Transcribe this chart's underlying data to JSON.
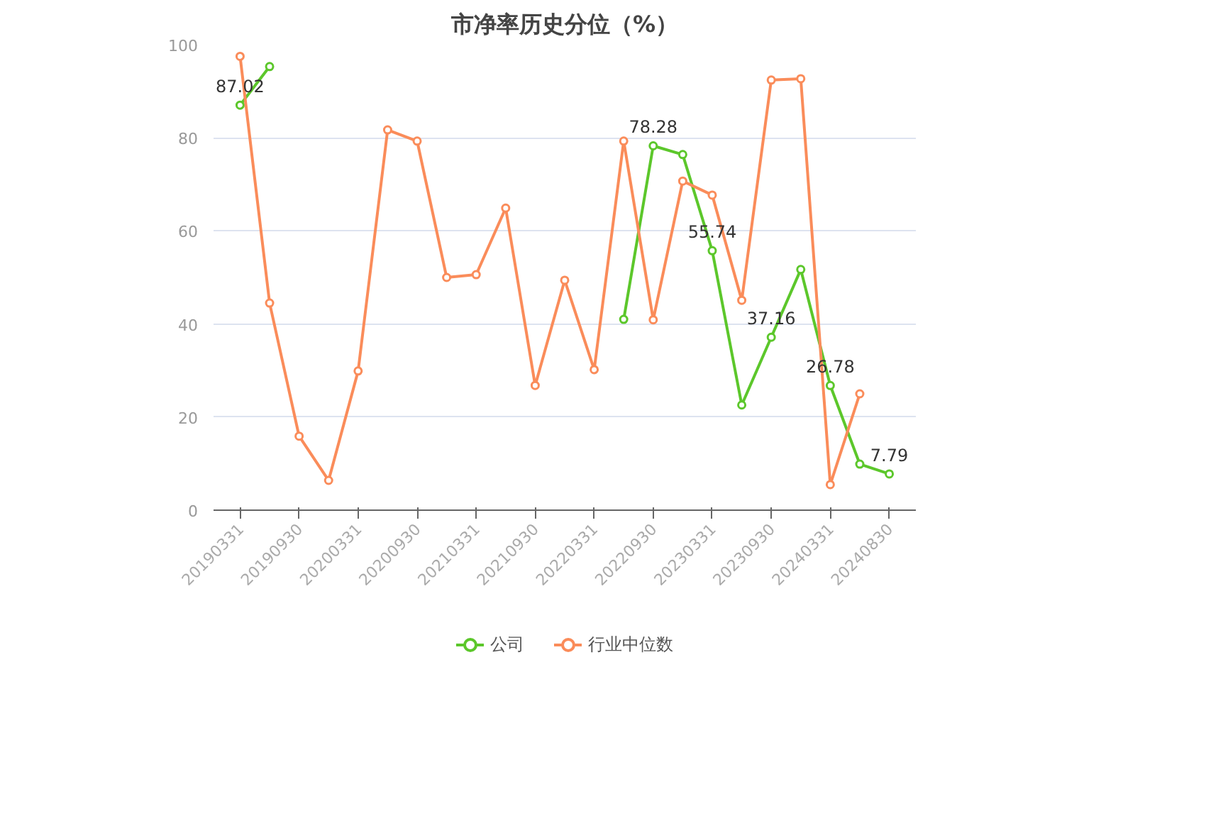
{
  "chart_data": {
    "type": "line",
    "title": "市净率历史分位（%）",
    "categories": [
      "20190331",
      null,
      "20190930",
      null,
      "20200331",
      null,
      "20200930",
      null,
      "20210331",
      null,
      "20210930",
      null,
      "20220331",
      null,
      "20220930",
      null,
      "20230331",
      null,
      "20230930",
      null,
      "20240331",
      null,
      "20240830"
    ],
    "series": [
      {
        "name": "公司",
        "color": "#5cc72b",
        "values": [
          87.02,
          95.3,
          null,
          null,
          null,
          null,
          null,
          null,
          null,
          null,
          null,
          null,
          null,
          41.0,
          78.28,
          76.4,
          55.74,
          22.6,
          37.16,
          51.7,
          26.78,
          9.9,
          7.79
        ],
        "value_labels": [
          "87.02",
          null,
          null,
          null,
          null,
          null,
          null,
          null,
          null,
          null,
          null,
          null,
          null,
          null,
          "78.28",
          null,
          "55.74",
          null,
          "37.16",
          null,
          "26.78",
          null,
          "7.79"
        ]
      },
      {
        "name": "行业中位数",
        "color": "#fa8c5a",
        "values": [
          97.5,
          44.5,
          15.9,
          6.4,
          29.9,
          81.7,
          79.3,
          50.0,
          50.6,
          64.9,
          26.8,
          49.4,
          30.2,
          79.3,
          40.9,
          70.7,
          67.7,
          45.1,
          92.4,
          92.7,
          5.5,
          25.0,
          null
        ]
      }
    ],
    "ylim": [
      0,
      100
    ],
    "yticks": [
      0,
      20,
      40,
      60,
      80,
      100
    ],
    "grid": "y",
    "legend": "bottom",
    "marker": "circle",
    "line_style": "solid"
  }
}
